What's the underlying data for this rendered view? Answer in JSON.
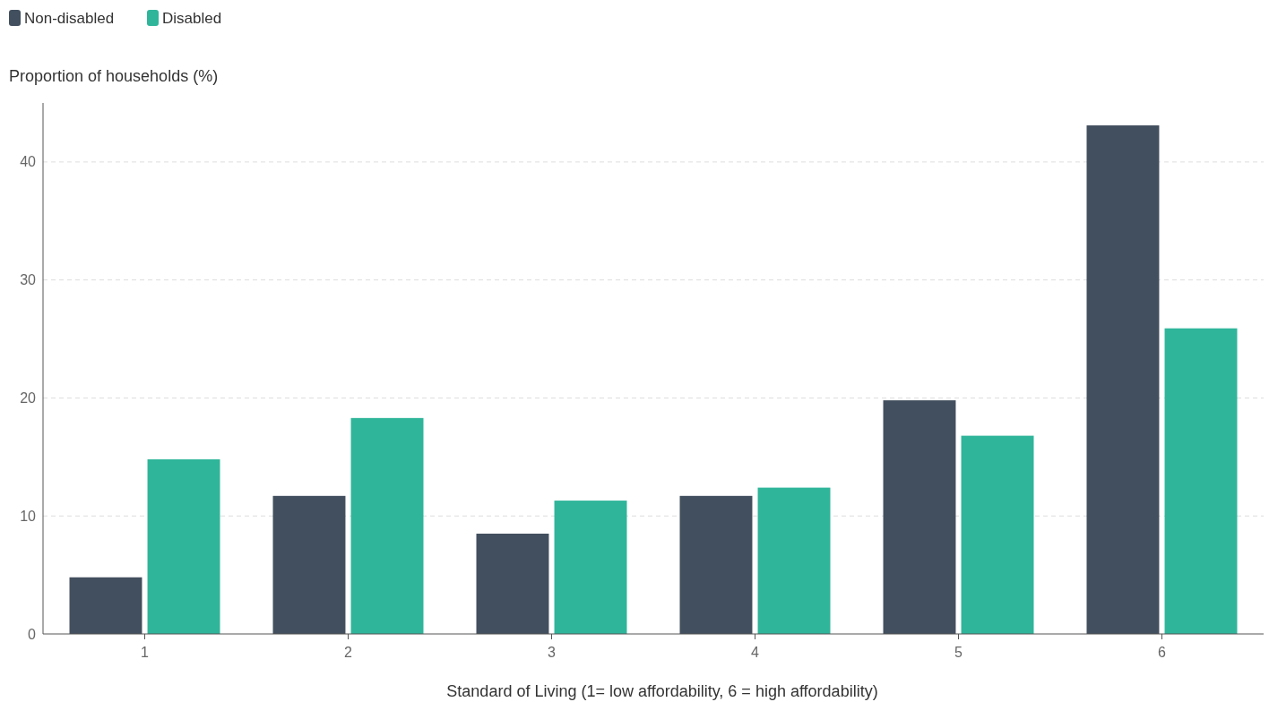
{
  "chart_data": {
    "type": "bar",
    "ylabel": "Proportion of households (%)",
    "xlabel": "Standard of Living (1= low affordability, 6 = high affordability)",
    "categories": [
      "1",
      "2",
      "3",
      "4",
      "5",
      "6"
    ],
    "series": [
      {
        "name": "Non-disabled",
        "color": "#424f5e",
        "values": [
          4.8,
          11.7,
          8.5,
          11.7,
          19.8,
          43.1
        ]
      },
      {
        "name": "Disabled",
        "color": "#2fb59a",
        "values": [
          14.8,
          18.3,
          11.3,
          12.4,
          16.8,
          25.9
        ]
      }
    ],
    "ylim": [
      0,
      45
    ],
    "yticks": [
      0,
      10,
      20,
      30,
      40
    ],
    "grid": "y",
    "legend": "top left"
  }
}
